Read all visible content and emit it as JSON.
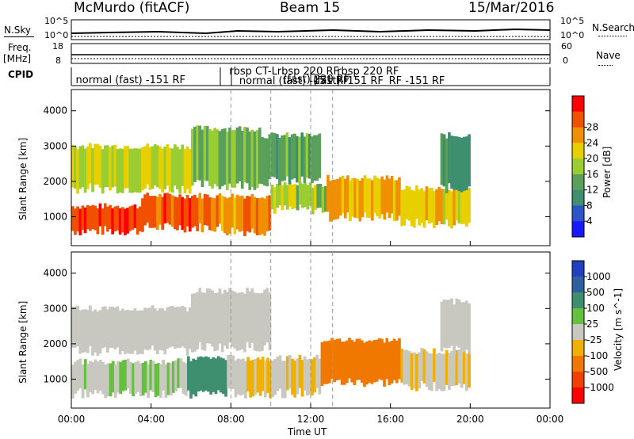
{
  "header": {
    "station": "McMurdo (fitACF)",
    "beam": "Beam 15",
    "date": "15/Mar/2016"
  },
  "left_labels": {
    "nsky": "N.Sky",
    "freq": "Freq.",
    "mhz": "[MHz]",
    "cpid": "CPID"
  },
  "right_labels": {
    "nsearch": "N.Search",
    "nave": "Nave"
  },
  "noise_axis": {
    "left_top": "10^5",
    "left_bottom": "10^0",
    "right_top": "10^5",
    "right_bottom": "10^0"
  },
  "freq_axis": {
    "left_top": "18",
    "left_bottom": "8",
    "right_top": "60",
    "right_bottom": "0"
  },
  "cpid_labels": [
    {
      "text": "normal (fast) -151 RF",
      "hour": 0.1
    },
    {
      "text": "rbsp CT-Lrbsp 220 RF",
      "hour": 7.8
    },
    {
      "text": "normal (fast) -151 RF",
      "hour": 8.3
    },
    {
      "text": "(fast) 220 RF",
      "hour": 10.5
    },
    {
      "text": "rbsp 220 RF",
      "hour": 13.2
    },
    {
      "text": "(fast) -151 RF",
      "hour": 12.0
    },
    {
      "text": "RF -151 RF",
      "hour": 15.8
    }
  ],
  "chart_data": [
    {
      "type": "heatmap",
      "title": "",
      "xlabel": "",
      "ylabel": "Slant Range [km]",
      "ylim": [
        180,
        4600
      ],
      "yticks": [
        1000,
        2000,
        3000,
        4000
      ],
      "colorbar": {
        "label": "Power [dB]",
        "range": [
          0,
          32
        ],
        "ticks": [
          "4",
          "8",
          "12",
          "16",
          "20",
          "24",
          "28"
        ],
        "colors": [
          "#1818ff",
          "#2a55c8",
          "#3d8f6f",
          "#5a9f5a",
          "#9acd32",
          "#e8d000",
          "#f09000",
          "#f05000",
          "#ff0000"
        ]
      },
      "bands": [
        {
          "x0": 0.0,
          "x1": 3.5,
          "y0": 600,
          "y1": 1300,
          "level": 28
        },
        {
          "x0": 3.5,
          "x1": 7.5,
          "y0": 700,
          "y1": 1600,
          "level": 26
        },
        {
          "x0": 7.5,
          "x1": 10.0,
          "y0": 600,
          "y1": 1600,
          "level": 24
        },
        {
          "x0": 10.0,
          "x1": 12.8,
          "y0": 1200,
          "y1": 1900,
          "level": 16
        },
        {
          "x0": 12.8,
          "x1": 16.5,
          "y0": 1000,
          "y1": 2100,
          "level": 22
        },
        {
          "x0": 16.5,
          "x1": 20.0,
          "y0": 800,
          "y1": 1800,
          "level": 20
        },
        {
          "x0": 0.0,
          "x1": 6.0,
          "y0": 1800,
          "y1": 3000,
          "level": 18
        },
        {
          "x0": 6.0,
          "x1": 9.5,
          "y0": 1900,
          "y1": 3500,
          "level": 14
        },
        {
          "x0": 9.5,
          "x1": 12.5,
          "y0": 2000,
          "y1": 3300,
          "level": 12
        },
        {
          "x0": 18.5,
          "x1": 20.0,
          "y0": 1800,
          "y1": 3300,
          "level": 10
        }
      ]
    },
    {
      "type": "heatmap",
      "title": "",
      "xlabel": "Time UT",
      "ylabel": "Slant Range [km]",
      "ylim": [
        180,
        4600
      ],
      "yticks": [
        1000,
        2000,
        3000,
        4000
      ],
      "xticks": [
        "00:00",
        "04:00",
        "08:00",
        "12:00",
        "16:00",
        "20:00",
        "00:00"
      ],
      "xlim": [
        0,
        24
      ],
      "colorbar": {
        "label": "Velocity [m s^-1]",
        "range": [
          -1200,
          1200
        ],
        "ticks": [
          "1000",
          "500",
          "100",
          "25",
          "-25",
          "-100",
          "-500",
          "-1000"
        ],
        "colors": [
          "#2040c0",
          "#2e5fa0",
          "#3d8f6f",
          "#66c040",
          "#c8c8c0",
          "#f0b000",
          "#f07800",
          "#f04000",
          "#ff0000"
        ]
      },
      "bands": [
        {
          "x0": 0.0,
          "x1": 5.8,
          "y0": 600,
          "y1": 1500,
          "level": 100
        },
        {
          "x0": 5.8,
          "x1": 7.8,
          "y0": 600,
          "y1": 1600,
          "level": 500
        },
        {
          "x0": 7.8,
          "x1": 12.5,
          "y0": 600,
          "y1": 1600,
          "level": -100
        },
        {
          "x0": 12.5,
          "x1": 16.5,
          "y0": 900,
          "y1": 2100,
          "level": -500
        },
        {
          "x0": 16.5,
          "x1": 20.0,
          "y0": 800,
          "y1": 1800,
          "level": -100
        },
        {
          "x0": 0.0,
          "x1": 6.0,
          "y0": 1800,
          "y1": 3000,
          "level": 0
        },
        {
          "x0": 6.0,
          "x1": 10.0,
          "y0": 1900,
          "y1": 3500,
          "level": 0
        },
        {
          "x0": 18.5,
          "x1": 20.0,
          "y0": 1800,
          "y1": 3200,
          "level": 0
        }
      ]
    }
  ]
}
